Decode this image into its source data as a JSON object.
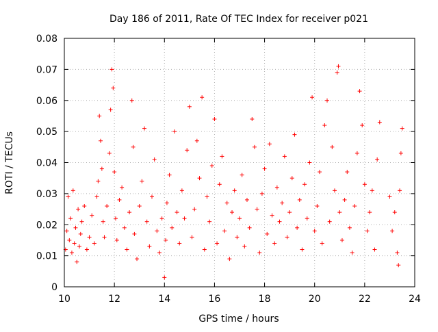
{
  "chart_data": {
    "type": "scatter",
    "title": "Day 186 of 2011, Rate Of TEC Index for receiver p021",
    "xlabel": "GPS time / hours",
    "ylabel": "ROTI / TECUs",
    "xlim": [
      10,
      24
    ],
    "ylim": [
      0,
      0.08
    ],
    "x_ticks": [
      "10",
      "12",
      "14",
      "16",
      "18",
      "20",
      "22",
      "24"
    ],
    "y_ticks": [
      "0",
      "0.01",
      "0.02",
      "0.03",
      "0.04",
      "0.05",
      "0.06",
      "0.07",
      "0.08"
    ],
    "grid": true,
    "marker": "+",
    "color": "#ff0000",
    "series": [
      {
        "points": [
          [
            10.05,
            0.012
          ],
          [
            10.1,
            0.018
          ],
          [
            10.15,
            0.029
          ],
          [
            10.2,
            0.015
          ],
          [
            10.25,
            0.022
          ],
          [
            10.3,
            0.011
          ],
          [
            10.35,
            0.031
          ],
          [
            10.4,
            0.014
          ],
          [
            10.45,
            0.019
          ],
          [
            10.5,
            0.008
          ],
          [
            10.55,
            0.025
          ],
          [
            10.6,
            0.013
          ],
          [
            10.65,
            0.017
          ],
          [
            10.7,
            0.021
          ],
          [
            10.8,
            0.026
          ],
          [
            10.9,
            0.012
          ],
          [
            11.0,
            0.016
          ],
          [
            11.1,
            0.023
          ],
          [
            11.2,
            0.014
          ],
          [
            11.3,
            0.029
          ],
          [
            11.35,
            0.034
          ],
          [
            11.4,
            0.055
          ],
          [
            11.45,
            0.047
          ],
          [
            11.5,
            0.038
          ],
          [
            11.55,
            0.021
          ],
          [
            11.6,
            0.016
          ],
          [
            11.7,
            0.026
          ],
          [
            11.8,
            0.043
          ],
          [
            11.85,
            0.057
          ],
          [
            11.9,
            0.07
          ],
          [
            11.95,
            0.064
          ],
          [
            12.0,
            0.037
          ],
          [
            12.05,
            0.022
          ],
          [
            12.1,
            0.015
          ],
          [
            12.2,
            0.028
          ],
          [
            12.3,
            0.032
          ],
          [
            12.4,
            0.019
          ],
          [
            12.5,
            0.012
          ],
          [
            12.6,
            0.024
          ],
          [
            12.7,
            0.06
          ],
          [
            12.75,
            0.045
          ],
          [
            12.8,
            0.017
          ],
          [
            12.9,
            0.009
          ],
          [
            13.0,
            0.026
          ],
          [
            13.1,
            0.034
          ],
          [
            13.2,
            0.051
          ],
          [
            13.3,
            0.021
          ],
          [
            13.4,
            0.013
          ],
          [
            13.5,
            0.029
          ],
          [
            13.6,
            0.041
          ],
          [
            13.7,
            0.018
          ],
          [
            13.8,
            0.011
          ],
          [
            13.9,
            0.022
          ],
          [
            14.0,
            0.003
          ],
          [
            14.05,
            0.015
          ],
          [
            14.1,
            0.027
          ],
          [
            14.2,
            0.036
          ],
          [
            14.3,
            0.019
          ],
          [
            14.4,
            0.05
          ],
          [
            14.5,
            0.024
          ],
          [
            14.6,
            0.014
          ],
          [
            14.7,
            0.031
          ],
          [
            14.8,
            0.022
          ],
          [
            14.9,
            0.044
          ],
          [
            15.0,
            0.058
          ],
          [
            15.1,
            0.016
          ],
          [
            15.2,
            0.025
          ],
          [
            15.3,
            0.047
          ],
          [
            15.4,
            0.035
          ],
          [
            15.5,
            0.061
          ],
          [
            15.6,
            0.012
          ],
          [
            15.7,
            0.029
          ],
          [
            15.8,
            0.021
          ],
          [
            15.9,
            0.039
          ],
          [
            16.0,
            0.054
          ],
          [
            16.1,
            0.014
          ],
          [
            16.2,
            0.033
          ],
          [
            16.3,
            0.042
          ],
          [
            16.4,
            0.018
          ],
          [
            16.5,
            0.027
          ],
          [
            16.6,
            0.009
          ],
          [
            16.7,
            0.024
          ],
          [
            16.8,
            0.031
          ],
          [
            16.9,
            0.016
          ],
          [
            17.0,
            0.022
          ],
          [
            17.1,
            0.036
          ],
          [
            17.2,
            0.013
          ],
          [
            17.3,
            0.028
          ],
          [
            17.4,
            0.019
          ],
          [
            17.5,
            0.054
          ],
          [
            17.6,
            0.045
          ],
          [
            17.7,
            0.025
          ],
          [
            17.8,
            0.011
          ],
          [
            17.9,
            0.03
          ],
          [
            18.0,
            0.038
          ],
          [
            18.1,
            0.017
          ],
          [
            18.2,
            0.046
          ],
          [
            18.3,
            0.023
          ],
          [
            18.4,
            0.014
          ],
          [
            18.5,
            0.032
          ],
          [
            18.6,
            0.021
          ],
          [
            18.7,
            0.027
          ],
          [
            18.8,
            0.042
          ],
          [
            18.9,
            0.016
          ],
          [
            19.0,
            0.024
          ],
          [
            19.1,
            0.035
          ],
          [
            19.2,
            0.049
          ],
          [
            19.3,
            0.019
          ],
          [
            19.4,
            0.028
          ],
          [
            19.5,
            0.012
          ],
          [
            19.6,
            0.033
          ],
          [
            19.7,
            0.022
          ],
          [
            19.8,
            0.04
          ],
          [
            19.9,
            0.061
          ],
          [
            20.0,
            0.018
          ],
          [
            20.1,
            0.026
          ],
          [
            20.2,
            0.037
          ],
          [
            20.3,
            0.014
          ],
          [
            20.4,
            0.052
          ],
          [
            20.5,
            0.06
          ],
          [
            20.6,
            0.021
          ],
          [
            20.7,
            0.045
          ],
          [
            20.8,
            0.031
          ],
          [
            20.9,
            0.069
          ],
          [
            20.95,
            0.071
          ],
          [
            21.0,
            0.024
          ],
          [
            21.1,
            0.015
          ],
          [
            21.2,
            0.028
          ],
          [
            21.3,
            0.037
          ],
          [
            21.4,
            0.019
          ],
          [
            21.5,
            0.011
          ],
          [
            21.6,
            0.026
          ],
          [
            21.7,
            0.043
          ],
          [
            21.8,
            0.063
          ],
          [
            21.9,
            0.052
          ],
          [
            22.0,
            0.033
          ],
          [
            22.1,
            0.018
          ],
          [
            22.2,
            0.024
          ],
          [
            22.3,
            0.031
          ],
          [
            22.4,
            0.012
          ],
          [
            22.5,
            0.041
          ],
          [
            22.6,
            0.053
          ],
          [
            23.0,
            0.029
          ],
          [
            23.1,
            0.018
          ],
          [
            23.2,
            0.024
          ],
          [
            23.3,
            0.011
          ],
          [
            23.35,
            0.007
          ],
          [
            23.4,
            0.031
          ],
          [
            23.45,
            0.043
          ],
          [
            23.5,
            0.051
          ]
        ]
      }
    ]
  }
}
